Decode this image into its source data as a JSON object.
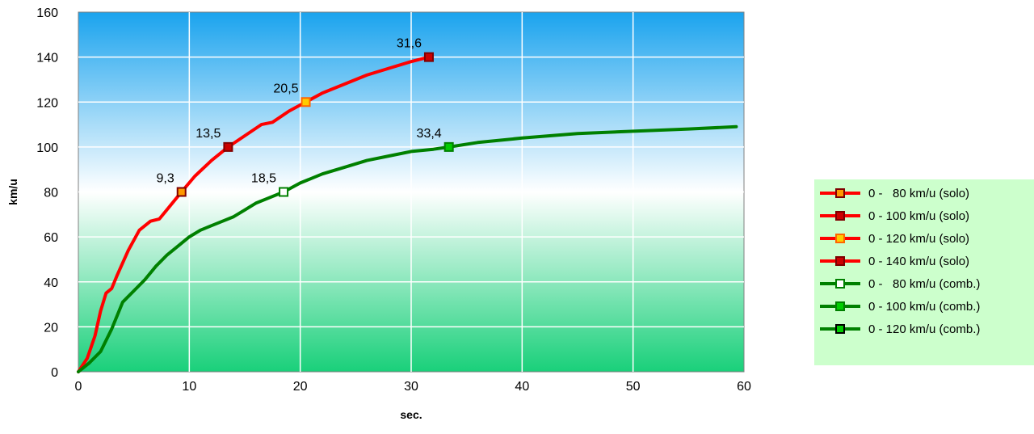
{
  "chart_data": {
    "type": "line",
    "title": "",
    "xlabel": "sec.",
    "ylabel": "km/u",
    "xlim": [
      0,
      60
    ],
    "ylim": [
      0,
      160
    ],
    "xticks": [
      0,
      10,
      20,
      30,
      40,
      50,
      60
    ],
    "yticks": [
      0,
      20,
      40,
      60,
      80,
      100,
      120,
      140,
      160
    ],
    "grid": true,
    "legend_position": "right",
    "colors": {
      "solo": "#ff0000",
      "comb": "#008000",
      "plot_top": "#1aa3ee",
      "plot_mid": "#ffffff",
      "plot_bottom": "#19d07a",
      "legend_bg": "#ccffcc"
    },
    "curves": [
      {
        "group": "solo",
        "color": "#ff0000",
        "x": [
          0,
          0.8,
          1.5,
          2.0,
          2.5,
          3.0,
          3.5,
          4.5,
          5.5,
          6.5,
          7.3,
          8.3,
          9.3,
          10.5,
          12.0,
          13.5,
          15.0,
          16.5,
          17.5,
          19.0,
          20.5,
          22.0,
          24.0,
          26.0,
          28.0,
          30.0,
          31.6
        ],
        "y": [
          0,
          6,
          16,
          27,
          35,
          37,
          43,
          54,
          63,
          67,
          68,
          74,
          80,
          87,
          94,
          100,
          105,
          110,
          111,
          116,
          120,
          124,
          128,
          132,
          135,
          138,
          140
        ]
      },
      {
        "group": "comb",
        "color": "#008000",
        "x": [
          0,
          1.0,
          2.0,
          3.0,
          4.0,
          5.0,
          6.0,
          7.0,
          8.0,
          9.0,
          10.0,
          11.0,
          12.0,
          13.0,
          14.0,
          15.0,
          16.0,
          17.0,
          18.5,
          20.0,
          22.0,
          24.0,
          26.0,
          28.0,
          30.0,
          32.0,
          33.4,
          36.0,
          40.0,
          45.0,
          50.0,
          55.0,
          59.3
        ],
        "y": [
          0,
          4,
          9,
          19,
          31,
          36,
          41,
          47,
          52,
          56,
          60,
          63,
          65,
          67,
          69,
          72,
          75,
          77,
          80,
          84,
          88,
          91,
          94,
          96,
          98,
          99,
          100,
          102,
          104,
          106,
          107,
          108,
          109
        ]
      }
    ],
    "markers": [
      {
        "x": 9.3,
        "y": 80,
        "label": "9,3",
        "fill": "#ff9900",
        "edge": "#800000"
      },
      {
        "x": 13.5,
        "y": 100,
        "label": "13,5",
        "fill": "#cc0000",
        "edge": "#800000"
      },
      {
        "x": 20.5,
        "y": 120,
        "label": "20,5",
        "fill": "#ffcc00",
        "edge": "#ff6600"
      },
      {
        "x": 31.6,
        "y": 140,
        "label": "31,6",
        "fill": "#cc0000",
        "edge": "#800000"
      },
      {
        "x": 18.5,
        "y": 80,
        "label": "18,5",
        "fill": "#ffffff",
        "edge": "#008000"
      },
      {
        "x": 33.4,
        "y": 100,
        "label": "33,4",
        "fill": "#00cc00",
        "edge": "#008000"
      }
    ],
    "series": [
      {
        "name": "0 -   80 km/u (solo)",
        "line": "#ff0000",
        "marker_fill": "#ff9900",
        "marker_edge": "#800000"
      },
      {
        "name": "0 - 100 km/u (solo)",
        "line": "#ff0000",
        "marker_fill": "#cc0000",
        "marker_edge": "#800000"
      },
      {
        "name": "0 - 120 km/u (solo)",
        "line": "#ff0000",
        "marker_fill": "#ffcc00",
        "marker_edge": "#ff6600"
      },
      {
        "name": "0 - 140 km/u (solo)",
        "line": "#ff0000",
        "marker_fill": "#cc0000",
        "marker_edge": "#800000"
      },
      {
        "name": "0 -   80 km/u (comb.)",
        "line": "#008000",
        "marker_fill": "#ffffff",
        "marker_edge": "#008000"
      },
      {
        "name": "0 - 100 km/u (comb.)",
        "line": "#008000",
        "marker_fill": "#00cc00",
        "marker_edge": "#008000"
      },
      {
        "name": "0 - 120 km/u (comb.)",
        "line": "#008000",
        "marker_fill": "#00cc00",
        "marker_edge": "#000000"
      }
    ]
  }
}
